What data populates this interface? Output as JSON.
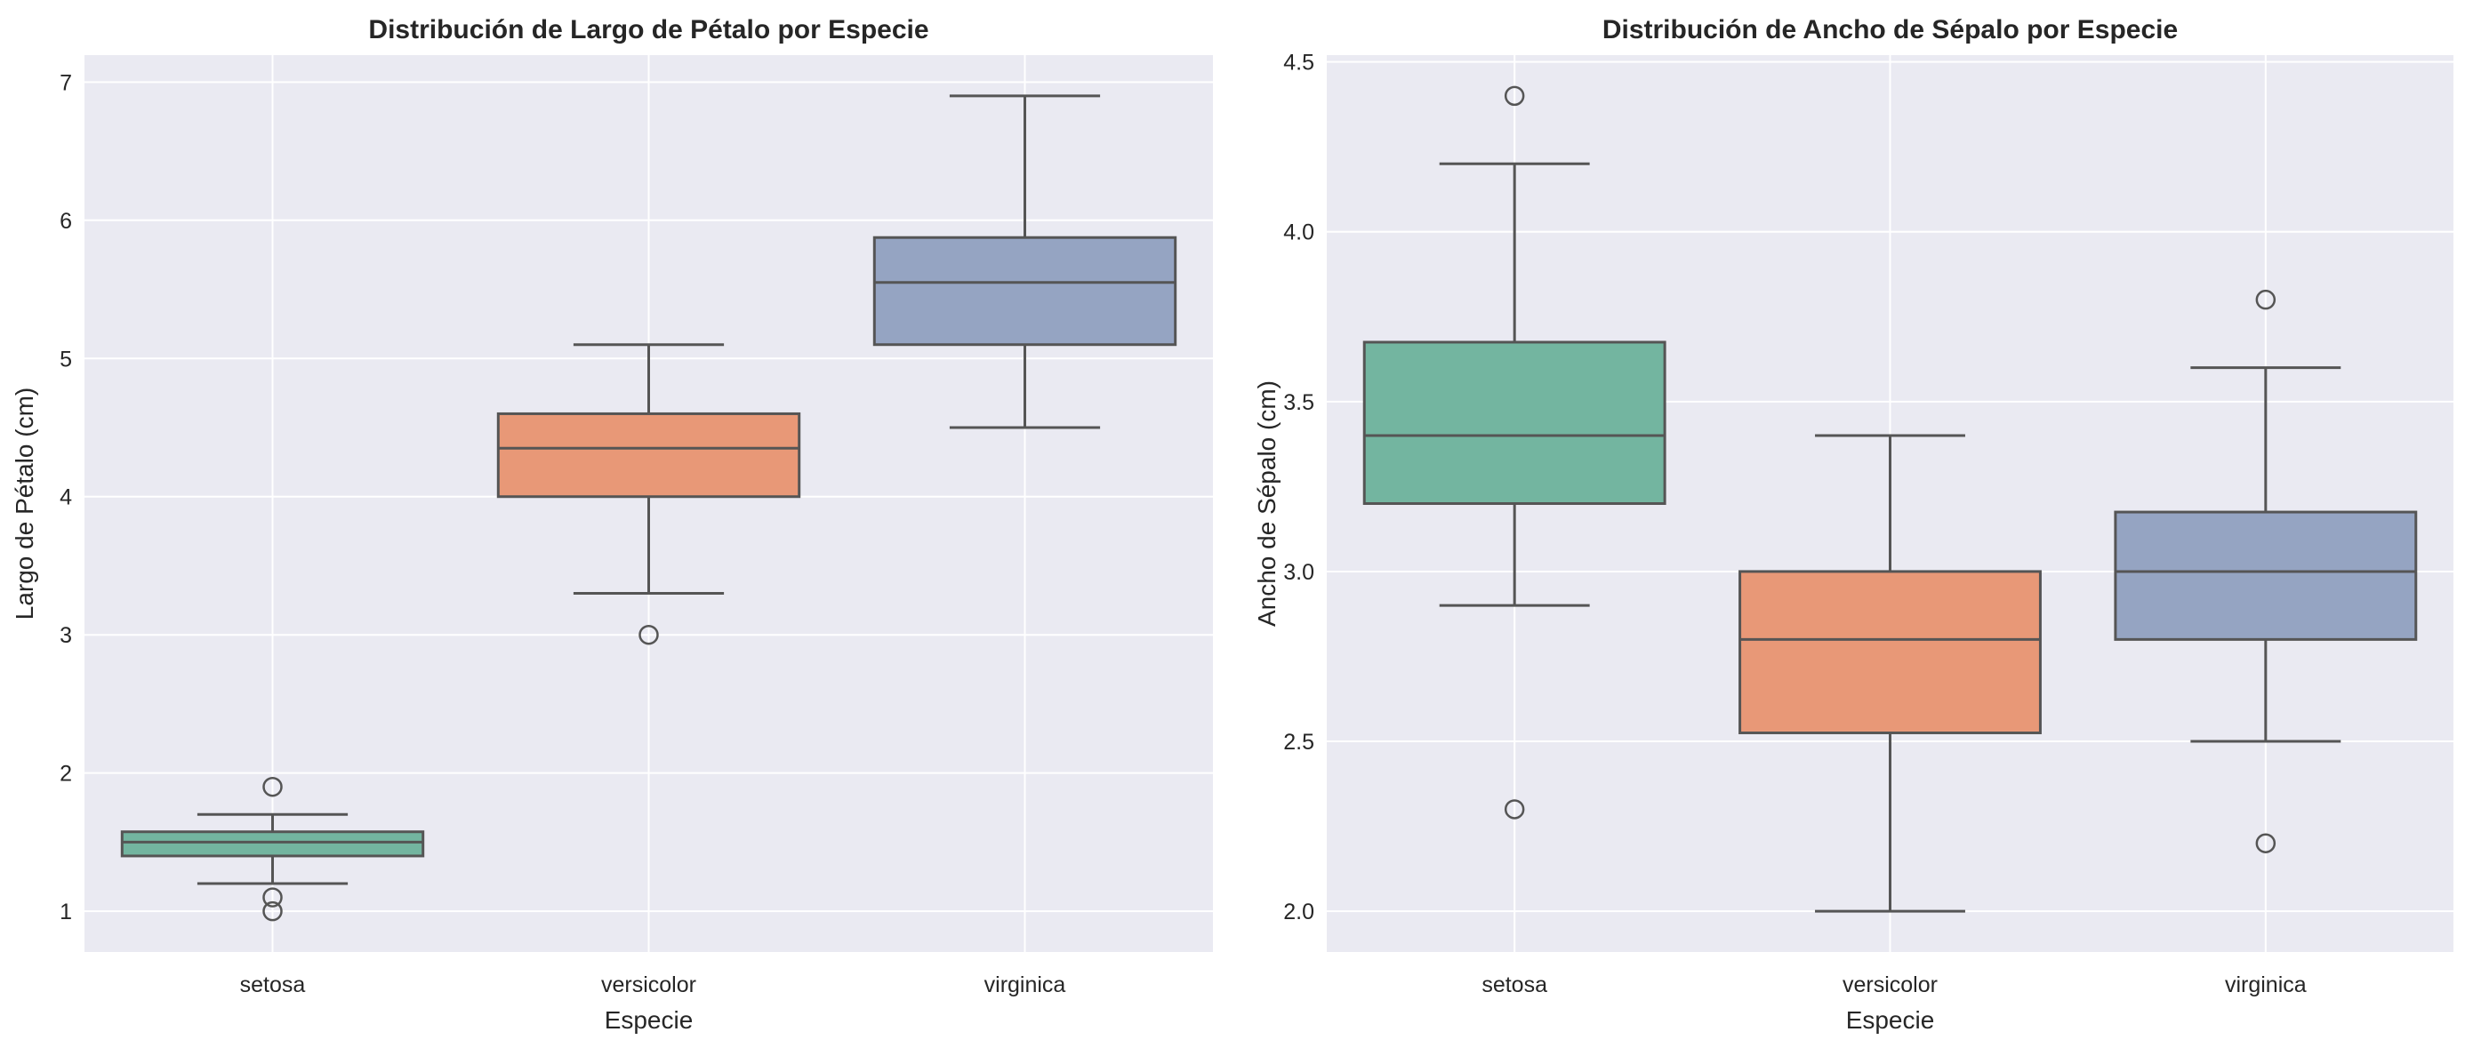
{
  "chart_data": [
    {
      "type": "box",
      "title": "Distribución de Largo de Pétalo por Especie",
      "xlabel": "Especie",
      "ylabel": "Largo de Pétalo (cm)",
      "categories": [
        "setosa",
        "versicolor",
        "virginica"
      ],
      "yticks": [
        "1",
        "2",
        "3",
        "4",
        "5",
        "6",
        "7"
      ],
      "ytick_values": [
        1,
        2,
        3,
        4,
        5,
        6,
        7
      ],
      "ylim": [
        0.705,
        7.195
      ],
      "grid": true,
      "boxes": [
        {
          "q1": 1.4,
          "median": 1.5,
          "q3": 1.575,
          "whisker_low": 1.2,
          "whisker_high": 1.7,
          "outliers": [
            1.9,
            1.1,
            1.0
          ],
          "color": "#73b5a0"
        },
        {
          "q1": 4.0,
          "median": 4.35,
          "q3": 4.6,
          "whisker_low": 3.3,
          "whisker_high": 5.1,
          "outliers": [
            3.0
          ],
          "color": "#e89877"
        },
        {
          "q1": 5.1,
          "median": 5.55,
          "q3": 5.875,
          "whisker_low": 4.5,
          "whisker_high": 6.9,
          "outliers": [],
          "color": "#95a4c2"
        }
      ]
    },
    {
      "type": "box",
      "title": "Distribución de Ancho de Sépalo por Especie",
      "xlabel": "Especie",
      "ylabel": "Ancho de Sépalo (cm)",
      "categories": [
        "setosa",
        "versicolor",
        "virginica"
      ],
      "yticks": [
        "2.0",
        "2.5",
        "3.0",
        "3.5",
        "4.0",
        "4.5"
      ],
      "ytick_values": [
        2.0,
        2.5,
        3.0,
        3.5,
        4.0,
        4.5
      ],
      "ylim": [
        1.88,
        4.52
      ],
      "grid": true,
      "boxes": [
        {
          "q1": 3.2,
          "median": 3.4,
          "q3": 3.675,
          "whisker_low": 2.9,
          "whisker_high": 4.2,
          "outliers": [
            4.4,
            2.3
          ],
          "color": "#73b5a0"
        },
        {
          "q1": 2.525,
          "median": 2.8,
          "q3": 3.0,
          "whisker_low": 2.0,
          "whisker_high": 3.4,
          "outliers": [],
          "color": "#e89877"
        },
        {
          "q1": 2.8,
          "median": 3.0,
          "q3": 3.175,
          "whisker_low": 2.5,
          "whisker_high": 3.6,
          "outliers": [
            3.8,
            2.2
          ],
          "color": "#95a4c2"
        }
      ]
    }
  ]
}
